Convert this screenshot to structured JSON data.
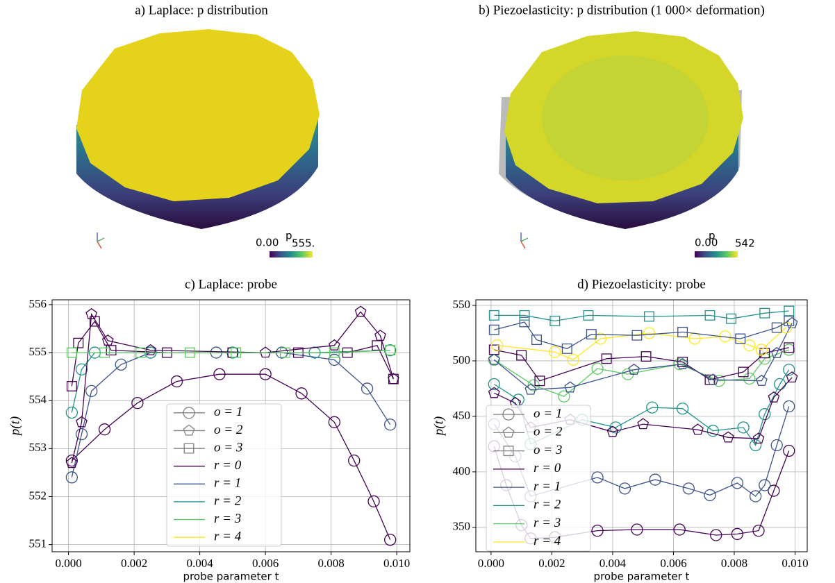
{
  "panels": [
    {
      "title": "a) Laplace: p distribution",
      "colorbar": {
        "label": "p",
        "min": "0.00",
        "max": "555."
      }
    },
    {
      "title": "b) Piezoelasticity: p distribution (1 000× deformation)",
      "colorbar": {
        "label": "p",
        "min": "0.00",
        "max": "542"
      }
    }
  ],
  "chart_data": [
    {
      "type": "line",
      "title": "c) Laplace: probe",
      "xlabel": "probe parameter t",
      "ylabel": "p(t)",
      "xlim": [
        -0.0005,
        0.0104
      ],
      "ylim": [
        550.85,
        556.1
      ],
      "grid": true,
      "xticks": [
        {
          "value": 0,
          "label": "0.000"
        },
        {
          "value": 0.002,
          "label": "0.002"
        },
        {
          "value": 0.004,
          "label": "0.004"
        },
        {
          "value": 0.006,
          "label": "0.006"
        },
        {
          "value": 0.008,
          "label": "0.008"
        },
        {
          "value": 0.01,
          "label": "0.010"
        }
      ],
      "yticks": [
        551,
        552,
        553,
        554,
        555,
        556
      ],
      "legend": [
        {
          "label": "o = 1",
          "marker": "circle"
        },
        {
          "label": "o = 2",
          "marker": "pentagon"
        },
        {
          "label": "o = 3",
          "marker": "square"
        },
        {
          "label": "r = 0",
          "color": "#440154"
        },
        {
          "label": "r = 1",
          "color": "#3b528b"
        },
        {
          "label": "r = 2",
          "color": "#21918c"
        },
        {
          "label": "r = 3",
          "color": "#5ec962"
        },
        {
          "label": "r = 4",
          "color": "#fde725"
        }
      ],
      "series": [
        {
          "color": "#440154",
          "marker": "circle",
          "x": [
            0.0001,
            0.0011,
            0.0021,
            0.0033,
            0.0046,
            0.006,
            0.0071,
            0.0081,
            0.0087,
            0.0093,
            0.0098
          ],
          "values": [
            552.75,
            553.4,
            553.95,
            554.4,
            554.55,
            554.55,
            554.15,
            553.55,
            552.75,
            551.9,
            551.1
          ]
        },
        {
          "color": "#3b528b",
          "marker": "circle",
          "x": [
            0.0001,
            0.0004,
            0.0007,
            0.0016,
            0.0025,
            0.0045,
            0.0065,
            0.0081,
            0.0091,
            0.0098
          ],
          "values": [
            552.4,
            553.3,
            554.2,
            554.75,
            555.0,
            555.0,
            555.0,
            554.85,
            554.25,
            553.5
          ]
        },
        {
          "color": "#21918c",
          "marker": "circle",
          "x": [
            0.0001,
            0.0004,
            0.0008,
            0.0025,
            0.005,
            0.0075,
            0.0098
          ],
          "values": [
            553.75,
            554.65,
            555.0,
            555.0,
            555.0,
            555.0,
            555.05
          ]
        },
        {
          "color": "#440154",
          "marker": "pentagon",
          "x": [
            0.0001,
            0.0004,
            0.0007,
            0.0012,
            0.0025,
            0.006,
            0.0081,
            0.0089,
            0.0095,
            0.0099
          ],
          "values": [
            552.7,
            553.55,
            555.8,
            555.25,
            555.05,
            555.0,
            555.15,
            555.85,
            555.35,
            554.45
          ]
        },
        {
          "color": "#440154",
          "marker": "square",
          "x": [
            0.0001,
            0.0003,
            0.0008,
            0.0013,
            0.003,
            0.005,
            0.007,
            0.0085,
            0.0094,
            0.0099
          ],
          "values": [
            554.3,
            555.2,
            555.65,
            555.05,
            555.0,
            555.0,
            555.0,
            555.0,
            555.15,
            554.45
          ]
        },
        {
          "color": "#5ec962",
          "marker": "square",
          "x": [
            0.0001,
            0.0011,
            0.0022,
            0.0037,
            0.0051,
            0.0066,
            0.0081,
            0.0098
          ],
          "values": [
            555.0,
            555.0,
            555.0,
            555.0,
            555.0,
            555.0,
            555.0,
            555.05
          ]
        }
      ]
    },
    {
      "type": "line",
      "title": "d) Piezoelasticity: probe",
      "xlabel": "probe parameter t",
      "ylabel": "p(t)",
      "xlim": [
        -0.0005,
        0.0104
      ],
      "ylim": [
        328,
        555
      ],
      "grid": true,
      "xticks": [
        {
          "value": 0,
          "label": "0.000"
        },
        {
          "value": 0.002,
          "label": "0.002"
        },
        {
          "value": 0.004,
          "label": "0.004"
        },
        {
          "value": 0.006,
          "label": "0.006"
        },
        {
          "value": 0.008,
          "label": "0.008"
        },
        {
          "value": 0.01,
          "label": "0.010"
        }
      ],
      "yticks": [
        350,
        400,
        450,
        500,
        550
      ],
      "legend": [
        {
          "label": "o = 1",
          "marker": "circle"
        },
        {
          "label": "o = 2",
          "marker": "pentagon"
        },
        {
          "label": "o = 3",
          "marker": "square"
        },
        {
          "label": "r = 0",
          "color": "#440154"
        },
        {
          "label": "r = 1",
          "color": "#3b528b"
        },
        {
          "label": "r = 2",
          "color": "#21918c"
        },
        {
          "label": "r = 3",
          "color": "#5ec962"
        },
        {
          "label": "r = 4",
          "color": "#fde725"
        }
      ],
      "series": [
        {
          "color": "#440154",
          "marker": "circle",
          "x": [
            0.0001,
            0.0005,
            0.001,
            0.0013,
            0.0021,
            0.0035,
            0.0048,
            0.0062,
            0.0074,
            0.0081,
            0.0088,
            0.0093,
            0.0098
          ],
          "values": [
            423,
            388,
            352,
            340,
            341,
            347,
            348,
            348,
            343,
            344,
            347,
            383,
            419
          ]
        },
        {
          "color": "#3b528b",
          "marker": "circle",
          "x": [
            0.0001,
            0.0008,
            0.0013,
            0.0035,
            0.0044,
            0.0054,
            0.0065,
            0.0072,
            0.0081,
            0.0087,
            0.009,
            0.0094,
            0.0098
          ],
          "values": [
            443,
            414,
            378,
            395,
            385,
            393,
            385,
            379,
            390,
            378,
            388,
            424,
            459
          ]
        },
        {
          "color": "#21918c",
          "marker": "circle",
          "x": [
            0.0001,
            0.0009,
            0.0013,
            0.003,
            0.0041,
            0.0053,
            0.0063,
            0.0073,
            0.0083,
            0.0087,
            0.009,
            0.0095,
            0.0098
          ],
          "values": [
            479,
            465,
            425,
            447,
            440,
            458,
            457,
            437,
            440,
            424,
            452,
            479,
            492
          ]
        },
        {
          "color": "#440154",
          "marker": "pentagon",
          "x": [
            0.0001,
            0.0008,
            0.0013,
            0.0026,
            0.004,
            0.005,
            0.0068,
            0.0078,
            0.0088,
            0.0093,
            0.0099
          ],
          "values": [
            471,
            462,
            440,
            447,
            436,
            443,
            438,
            431,
            430,
            467,
            485
          ]
        },
        {
          "color": "#5ec962",
          "marker": "circle",
          "x": [
            0.0001,
            0.0014,
            0.0024,
            0.0035,
            0.0045,
            0.0062,
            0.0075,
            0.0085,
            0.009,
            0.0098
          ],
          "values": [
            501,
            478,
            468,
            493,
            488,
            497,
            482,
            484,
            502,
            510
          ]
        },
        {
          "color": "#440154",
          "marker": "square",
          "x": [
            0.0001,
            0.001,
            0.0016,
            0.0038,
            0.0051,
            0.0063,
            0.0072,
            0.0083,
            0.009,
            0.0098
          ],
          "values": [
            510,
            505,
            482,
            502,
            504,
            499,
            483,
            490,
            507,
            512
          ]
        },
        {
          "color": "#3b528b",
          "marker": "pentagon",
          "x": [
            0.0001,
            0.0013,
            0.0026,
            0.0047,
            0.0063,
            0.0073,
            0.0089,
            0.0094,
            0.0099
          ],
          "values": [
            501,
            474,
            476,
            492,
            497,
            483,
            482,
            507,
            534
          ]
        },
        {
          "color": "#fde725",
          "marker": "circle",
          "x": [
            0.0002,
            0.0021,
            0.0027,
            0.0036,
            0.0052,
            0.0067,
            0.0077,
            0.0085,
            0.0089,
            0.0097
          ],
          "values": [
            514,
            508,
            501,
            520,
            525,
            520,
            522,
            514,
            510,
            530
          ]
        },
        {
          "color": "#3b528b",
          "marker": "square",
          "x": [
            0.0001,
            0.0011,
            0.0015,
            0.0025,
            0.0033,
            0.0048,
            0.0063,
            0.0082,
            0.0094,
            0.0098
          ],
          "values": [
            528,
            535,
            519,
            511,
            524,
            523,
            526,
            520,
            530,
            536
          ]
        },
        {
          "color": "#21918c",
          "marker": "square",
          "x": [
            0.0001,
            0.0011,
            0.0021,
            0.0032,
            0.0052,
            0.0072,
            0.0079,
            0.009,
            0.0098
          ],
          "values": [
            541,
            541,
            536,
            541,
            540,
            541,
            538,
            543,
            545
          ]
        }
      ]
    }
  ]
}
